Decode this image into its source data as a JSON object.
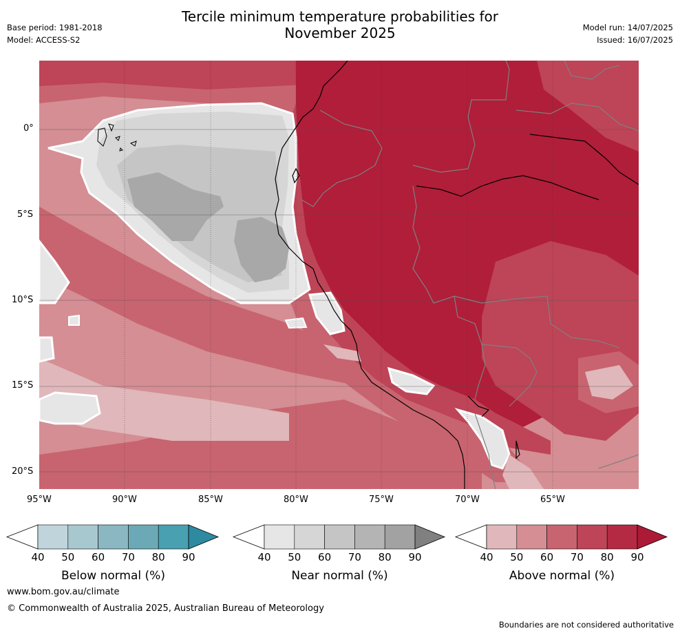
{
  "header": {
    "title_line1": "Tercile minimum temperature probabilities for",
    "title_line2": "November 2025",
    "base_period": "Base period: 1981-2018",
    "model": "Model: ACCESS-S2",
    "model_run": "Model run: 14/07/2025",
    "issued": "Issued: 16/07/2025"
  },
  "map": {
    "lat_labels": [
      "0°",
      "5°S",
      "10°S",
      "15°S",
      "20°S"
    ],
    "lon_labels": [
      "95°W",
      "90°W",
      "85°W",
      "80°W",
      "75°W",
      "70°W",
      "65°W"
    ],
    "extent": {
      "lon": [
        -95,
        -60
      ],
      "lat": [
        -21,
        4
      ]
    },
    "colors": {
      "above_90": "#b01e3a",
      "above_80": "#be4457",
      "above_70": "#c8646f",
      "above_60": "#d48e94",
      "above_50": "#e0b7ba",
      "near_50": "#e6e6e6",
      "near_60": "#d6d6d6",
      "near_70": "#c5c5c5",
      "near_80": "#a8a8a8",
      "country_border": "#808080",
      "coastline": "#000000"
    }
  },
  "colorbars": [
    {
      "id": "below",
      "title": "Below normal (%)",
      "ticks": [
        "40",
        "50",
        "60",
        "70",
        "80",
        "90"
      ],
      "colors": [
        "#bfd5db",
        "#a8c8cf",
        "#8ab7c2",
        "#6aa9b5",
        "#48a0b0",
        "#2e8aa0"
      ]
    },
    {
      "id": "near",
      "title": "Near normal (%)",
      "ticks": [
        "40",
        "50",
        "60",
        "70",
        "80",
        "90"
      ],
      "colors": [
        "#e6e6e6",
        "#d6d6d6",
        "#c5c5c5",
        "#b4b4b4",
        "#a2a2a2",
        "#808080"
      ]
    },
    {
      "id": "above",
      "title": "Above normal (%)",
      "ticks": [
        "40",
        "50",
        "60",
        "70",
        "80",
        "90"
      ],
      "colors": [
        "#e0b7ba",
        "#d48e94",
        "#c8646f",
        "#be4457",
        "#b52a43",
        "#ad1a36"
      ]
    }
  ],
  "footer": {
    "website": "www.bom.gov.au/climate",
    "copyright": "© Commonwealth of Australia 2025, Australian Bureau of Meteorology",
    "disclaimer": "Boundaries are not considered authoritative"
  }
}
